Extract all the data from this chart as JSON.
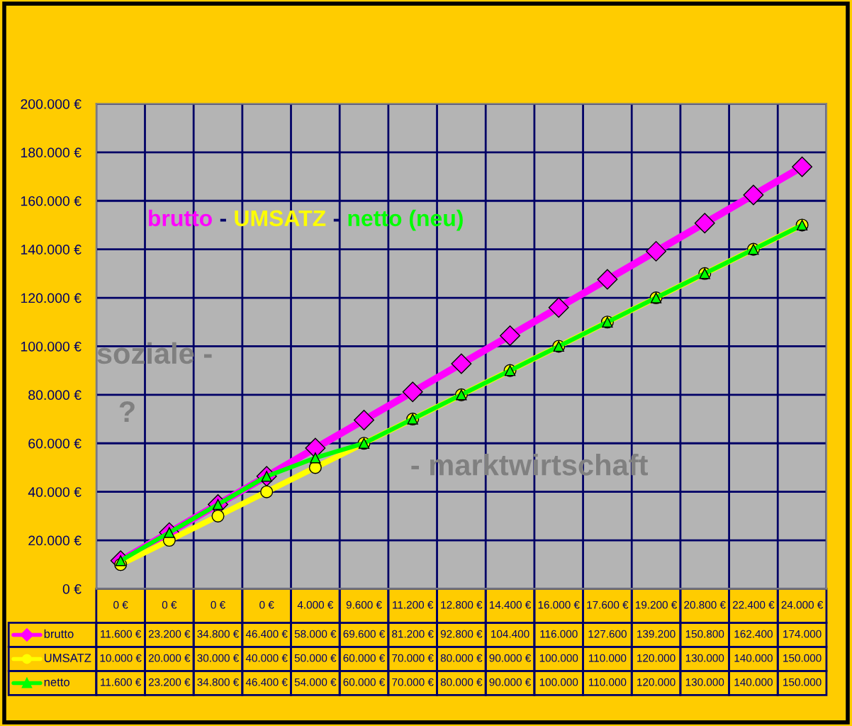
{
  "chart_data": {
    "type": "line",
    "categories": [
      "0 €",
      "0 €",
      "0 €",
      "0 €",
      "4.000 €",
      "9.600 €",
      "11.200 €",
      "12.800 €",
      "14.400 €",
      "16.000 €",
      "17.600 €",
      "19.200 €",
      "20.800 €",
      "22.400 €",
      "24.000 €"
    ],
    "series": [
      {
        "name": "brutto",
        "color": "#ff00ff",
        "marker": "diamond",
        "values": [
          11600,
          23200,
          34800,
          46400,
          58000,
          69600,
          81200,
          92800,
          104400,
          116000,
          127600,
          139200,
          150800,
          162400,
          174000
        ],
        "value_labels": [
          "11.600 €",
          "23.200 €",
          "34.800 €",
          "46.400 €",
          "58.000 €",
          "69.600 €",
          "81.200 €",
          "92.800 €",
          "104.400",
          "116.000",
          "127.600",
          "139.200",
          "150.800",
          "162.400",
          "174.000"
        ]
      },
      {
        "name": "UMSATZ",
        "color": "#ffff00",
        "marker": "circle",
        "values": [
          10000,
          20000,
          30000,
          40000,
          50000,
          60000,
          70000,
          80000,
          90000,
          100000,
          110000,
          120000,
          130000,
          140000,
          150000
        ],
        "value_labels": [
          "10.000 €",
          "20.000 €",
          "30.000 €",
          "40.000 €",
          "50.000 €",
          "60.000 €",
          "70.000 €",
          "80.000 €",
          "90.000 €",
          "100.000",
          "110.000",
          "120.000",
          "130.000",
          "140.000",
          "150.000"
        ]
      },
      {
        "name": "netto",
        "color": "#00ff00",
        "marker": "triangle",
        "values": [
          11600,
          23200,
          34800,
          46400,
          54000,
          60000,
          70000,
          80000,
          90000,
          100000,
          110000,
          120000,
          130000,
          140000,
          150000
        ],
        "value_labels": [
          "11.600 €",
          "23.200 €",
          "34.800 €",
          "46.400 €",
          "54.000 €",
          "60.000 €",
          "70.000 €",
          "80.000 €",
          "90.000 €",
          "100.000",
          "110.000",
          "120.000",
          "130.000",
          "140.000",
          "150.000"
        ]
      }
    ],
    "ylim": [
      0,
      200000
    ],
    "yticks": [
      {
        "value": 0,
        "label": "0 €"
      },
      {
        "value": 20000,
        "label": "20.000 €"
      },
      {
        "value": 40000,
        "label": "40.000 €"
      },
      {
        "value": 60000,
        "label": "60.000 €"
      },
      {
        "value": 80000,
        "label": "80.000 €"
      },
      {
        "value": 100000,
        "label": "100.000 €"
      },
      {
        "value": 120000,
        "label": "120.000 €"
      },
      {
        "value": 140000,
        "label": "140.000 €"
      },
      {
        "value": 160000,
        "label": "160.000 €"
      },
      {
        "value": 180000,
        "label": "180.000 €"
      },
      {
        "value": 200000,
        "label": "200.000 €"
      }
    ],
    "grid": true,
    "legend": "bottom",
    "line_style": "solid",
    "annotations": [
      "brutto - UMSATZ - netto (neu)",
      "soziale -",
      "?",
      "- marktwirtschaft"
    ]
  }
}
